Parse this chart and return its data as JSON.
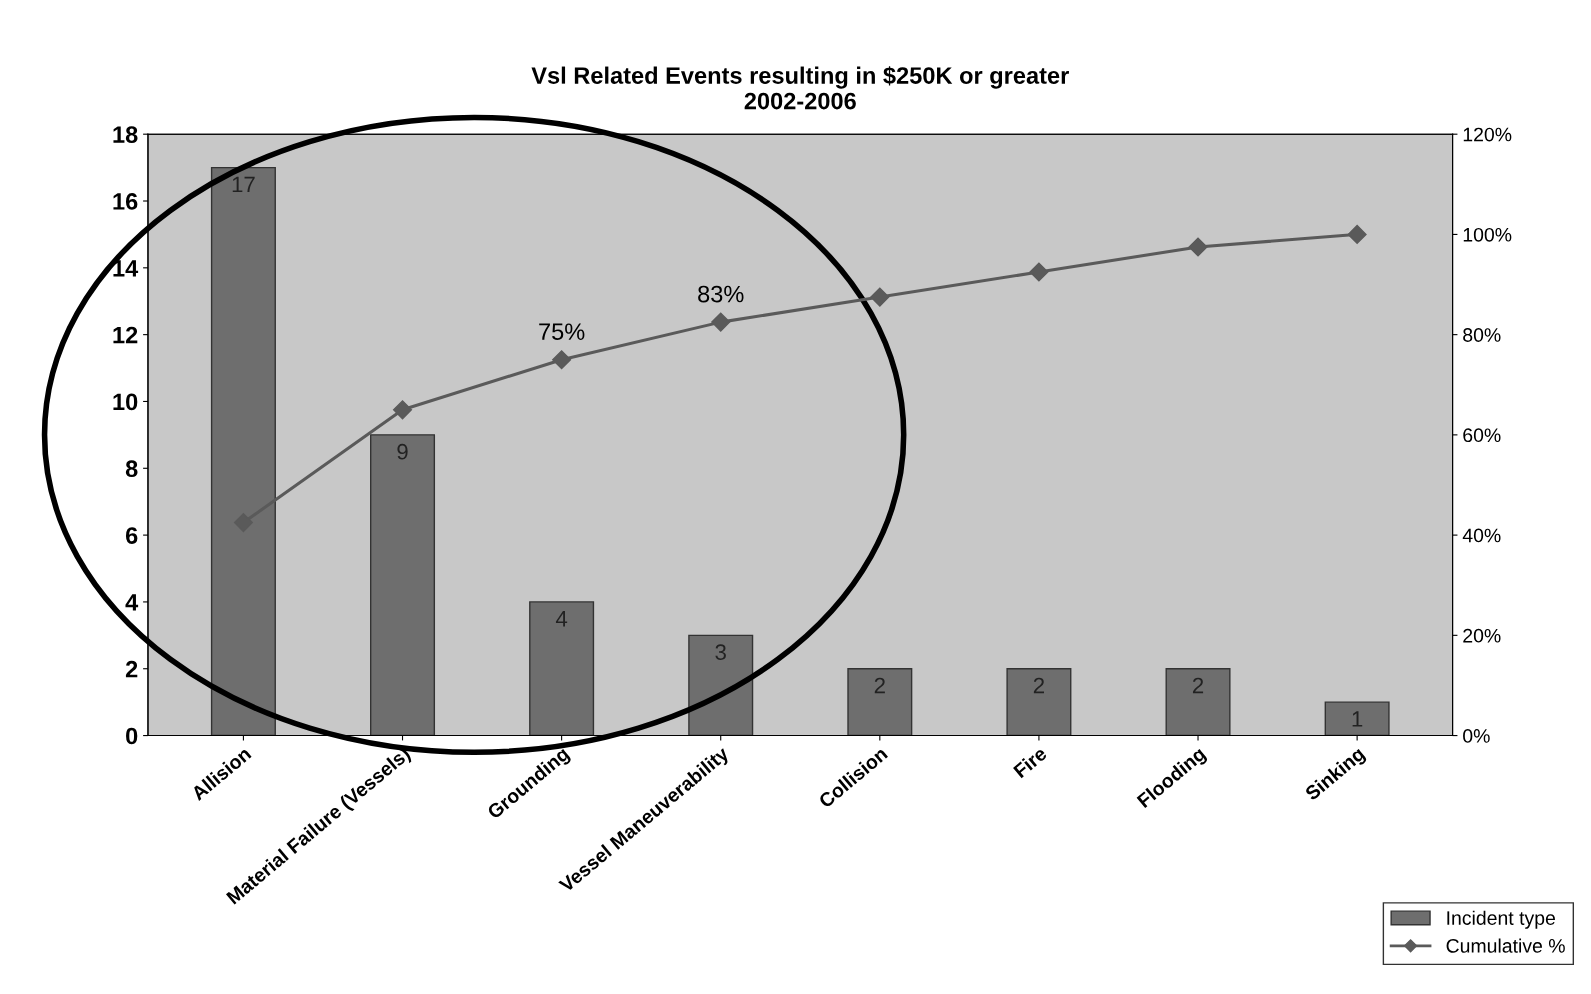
{
  "chart_data": {
    "type": "bar",
    "title": "Vsl Related Events resulting in $250K or greater\n2002-2006",
    "categories": [
      "Allision",
      "Material Failure (Vessels)",
      "Grounding",
      "Vessel Maneuverability",
      "Collision",
      "Fire",
      "Flooding",
      "Sinking"
    ],
    "series": [
      {
        "name": "Incident type",
        "color": "#6e6e6e",
        "values": [
          17,
          9,
          4,
          3,
          2,
          2,
          2,
          1
        ],
        "value_labels": [
          "17",
          "9",
          "4",
          "3",
          "2",
          "2",
          "2",
          "1"
        ]
      },
      {
        "name": "Cumulative %",
        "type": "line",
        "axis": "y2",
        "color": "#5a5a5a",
        "marker": "diamond",
        "values": [
          42.5,
          65,
          75,
          82.5,
          87.5,
          92.5,
          97.5,
          100
        ]
      }
    ],
    "annotations": [
      "75%",
      "83%"
    ],
    "ylim": [
      0,
      18
    ],
    "yticks": [
      0,
      2,
      4,
      6,
      8,
      10,
      12,
      14,
      16,
      18
    ],
    "y2lim": [
      0,
      120
    ],
    "y2ticks": [
      {
        "value": 0,
        "label": "0%"
      },
      {
        "value": 20,
        "label": "20%"
      },
      {
        "value": 40,
        "label": "40%"
      },
      {
        "value": 60,
        "label": "60%"
      },
      {
        "value": 80,
        "label": "80%"
      },
      {
        "value": 100,
        "label": "100%"
      },
      {
        "value": 120,
        "label": "120%"
      }
    ],
    "grid": false,
    "legend": "bottom right"
  }
}
